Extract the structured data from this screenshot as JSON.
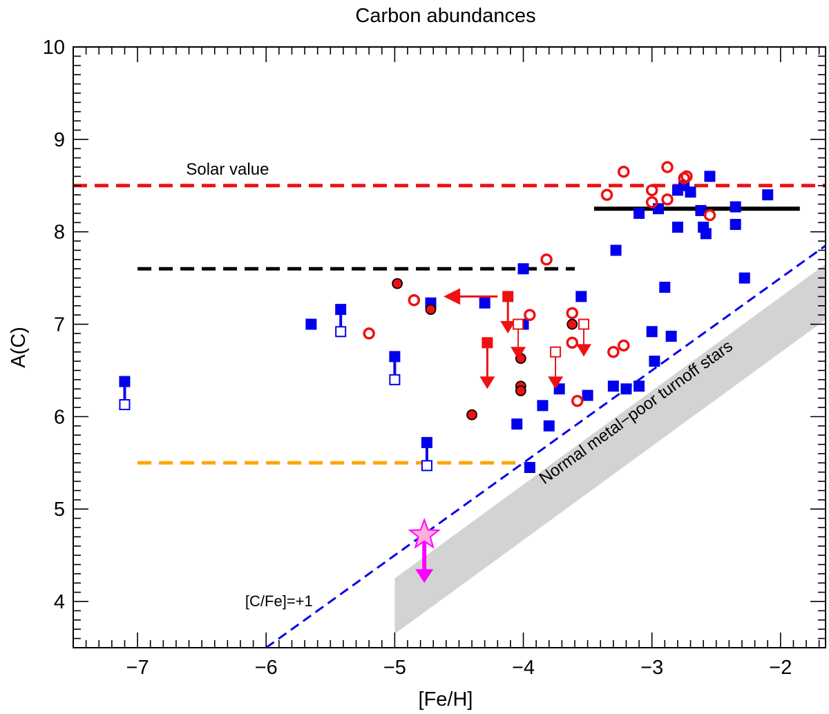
{
  "chart_data": {
    "type": "scatter",
    "title": "Carbon abundances",
    "xlabel": "[Fe/H]",
    "ylabel": "A(C)",
    "xlim": [
      -7.5,
      -1.65
    ],
    "ylim": [
      3.5,
      10.0
    ],
    "x_ticks": [
      -7,
      -6,
      -5,
      -4,
      -3,
      -2
    ],
    "x_tick_labels": [
      "−7",
      "−6",
      "−5",
      "−4",
      "−3",
      "−2"
    ],
    "y_ticks": [
      4,
      5,
      6,
      7,
      8,
      9,
      10
    ],
    "y_tick_labels": [
      "4",
      "5",
      "6",
      "7",
      "8",
      "9",
      "10"
    ],
    "annotations": {
      "solar_label": "Solar value",
      "cfe_label": "[C/Fe]=+1",
      "band_label": "Normal metal−poor turnoff stars"
    },
    "colors": {
      "blue": "#0000ee",
      "red": "#ee1111",
      "orange": "#ffa500",
      "black": "#000000",
      "magenta": "#ff00ff",
      "pink": "#ffb0d8",
      "gray": "#d3d3d3"
    },
    "reference_lines": [
      {
        "name": "solar-value-line",
        "y": 8.5,
        "x": [
          -7.5,
          -1.65
        ],
        "color": "#ee1111",
        "style": "dashed"
      },
      {
        "name": "black-dashed-line",
        "y": 7.6,
        "x": [
          -7.0,
          -3.6
        ],
        "color": "#000000",
        "style": "dashed"
      },
      {
        "name": "orange-dashed-line",
        "y": 5.5,
        "x": [
          -7.0,
          -4.0
        ],
        "color": "#ffa500",
        "style": "dashed"
      },
      {
        "name": "black-solid-line",
        "y": 8.25,
        "x": [
          -3.45,
          -1.85
        ],
        "color": "#000000",
        "style": "solid"
      }
    ],
    "cfe_line": {
      "slope": 1.0,
      "intercept": 9.5,
      "x": [
        -6.0,
        -1.65
      ]
    },
    "turnoff_band": {
      "lower": [
        [
          -5.0,
          3.65
        ],
        [
          -1.65,
          7.05
        ]
      ],
      "upper": [
        [
          -5.0,
          4.25
        ],
        [
          -1.65,
          7.65
        ]
      ]
    },
    "series": [
      {
        "name": "blue-filled-squares",
        "marker": "filled-square",
        "points": [
          [
            -7.1,
            6.38
          ],
          [
            -5.65,
            7.0
          ],
          [
            -5.42,
            7.16
          ],
          [
            -5.0,
            6.65
          ],
          [
            -4.75,
            5.72
          ],
          [
            -4.72,
            7.23
          ],
          [
            -4.3,
            7.23
          ],
          [
            -4.05,
            5.92
          ],
          [
            -4.0,
            7.6
          ],
          [
            -4.0,
            7.0
          ],
          [
            -3.95,
            5.45
          ],
          [
            -3.85,
            6.12
          ],
          [
            -3.8,
            5.9
          ],
          [
            -3.72,
            6.3
          ],
          [
            -3.55,
            7.3
          ],
          [
            -3.5,
            6.23
          ],
          [
            -3.3,
            6.33
          ],
          [
            -3.28,
            7.8
          ],
          [
            -3.2,
            6.3
          ],
          [
            -3.1,
            8.2
          ],
          [
            -3.1,
            6.33
          ],
          [
            -3.0,
            6.92
          ],
          [
            -2.98,
            6.6
          ],
          [
            -2.95,
            8.25
          ],
          [
            -2.9,
            7.4
          ],
          [
            -2.85,
            6.87
          ],
          [
            -2.8,
            8.05
          ],
          [
            -2.8,
            8.45
          ],
          [
            -2.75,
            8.5
          ],
          [
            -2.7,
            8.43
          ],
          [
            -2.62,
            8.23
          ],
          [
            -2.6,
            8.05
          ],
          [
            -2.58,
            7.98
          ],
          [
            -2.55,
            8.6
          ],
          [
            -2.35,
            8.27
          ],
          [
            -2.35,
            8.08
          ],
          [
            -2.28,
            7.5
          ],
          [
            -2.1,
            8.4
          ]
        ]
      },
      {
        "name": "blue-open-squares",
        "marker": "open-square",
        "points": [
          [
            -7.1,
            6.13
          ],
          [
            -5.42,
            6.92
          ],
          [
            -5.0,
            6.4
          ],
          [
            -4.75,
            5.47
          ]
        ]
      },
      {
        "name": "red-open-circles",
        "marker": "open-circle",
        "points": [
          [
            -5.2,
            6.9
          ],
          [
            -4.85,
            7.26
          ],
          [
            -3.95,
            7.1
          ],
          [
            -3.82,
            7.7
          ],
          [
            -3.62,
            7.12
          ],
          [
            -3.62,
            6.8
          ],
          [
            -3.58,
            6.17
          ],
          [
            -3.35,
            8.4
          ],
          [
            -3.3,
            6.7
          ],
          [
            -3.22,
            6.77
          ],
          [
            -3.22,
            8.65
          ],
          [
            -3.0,
            8.45
          ],
          [
            -3.0,
            8.32
          ],
          [
            -2.88,
            8.7
          ],
          [
            -2.88,
            8.35
          ],
          [
            -2.75,
            8.58
          ],
          [
            -2.73,
            8.6
          ],
          [
            -2.55,
            8.18
          ]
        ]
      },
      {
        "name": "red-filled-black-circles",
        "marker": "filled-circle",
        "points": [
          [
            -4.98,
            7.44
          ],
          [
            -4.72,
            7.16
          ],
          [
            -4.4,
            6.02
          ],
          [
            -4.02,
            6.63
          ],
          [
            -4.02,
            6.33
          ],
          [
            -4.02,
            6.28
          ],
          [
            -3.62,
            7.0
          ]
        ]
      },
      {
        "name": "red-filled-square-upper-limits",
        "marker": "filled-square-down-arrow",
        "points": [
          [
            -4.28,
            6.8,
            6.3
          ],
          [
            -4.12,
            7.3,
            6.9
          ]
        ],
        "point_format": "[feh, value, arrow_tip]"
      },
      {
        "name": "red-open-square-upper-limits",
        "marker": "open-square-down-arrow",
        "points": [
          [
            -4.04,
            7.0,
            6.62
          ],
          [
            -3.75,
            6.7,
            6.3
          ],
          [
            -3.53,
            7.0,
            6.65
          ]
        ],
        "point_format": "[feh, value, arrow_tip]"
      },
      {
        "name": "red-left-arrow-limit",
        "marker": "left-arrow",
        "points": [
          [
            -4.2,
            7.3,
            -4.62
          ]
        ],
        "point_format": "[feh, value, arrow_tip]"
      },
      {
        "name": "magenta-star-upper-limit",
        "marker": "star-down-arrow",
        "points": [
          [
            -4.77,
            4.72,
            4.2
          ]
        ],
        "point_format": "[feh, value, arrow_tip]"
      }
    ],
    "connector_lines": [
      {
        "x": -7.1,
        "y": [
          6.38,
          6.13
        ]
      },
      {
        "x": -5.42,
        "y": [
          7.16,
          6.92
        ]
      },
      {
        "x": -5.0,
        "y": [
          6.65,
          6.4
        ]
      },
      {
        "x": -4.75,
        "y": [
          5.72,
          5.47
        ]
      }
    ]
  }
}
